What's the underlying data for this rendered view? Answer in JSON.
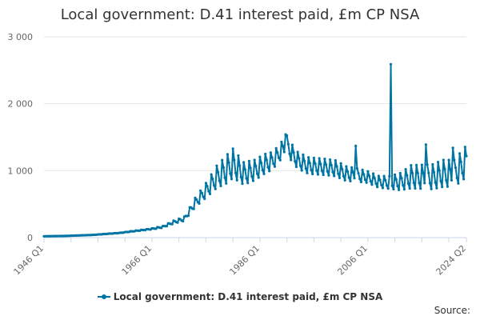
{
  "source_label": "Source:",
  "chart_data": {
    "type": "line",
    "title": "Local government: D.41 interest paid, £m CP NSA",
    "xlabel": "",
    "ylabel": "",
    "x_tick_labels": [
      "1946 Q1",
      "1966 Q1",
      "1986 Q1",
      "2006 Q1",
      "2024 Q2"
    ],
    "y_tick_labels": [
      "0",
      "1 000",
      "2 000",
      "3 000"
    ],
    "y_ticks": [
      0,
      1000,
      2000,
      3000
    ],
    "ylim": [
      0,
      3000
    ],
    "x_range": [
      "1946 Q1",
      "2024 Q2"
    ],
    "grid": "horizontal",
    "legend_position": "bottom",
    "series_color": "#0075A3",
    "series": [
      {
        "name": "Local government: D.41 interest paid, £m CP NSA",
        "start": "1946 Q1",
        "frequency": "quarterly",
        "anchors": [
          [
            "1946 Q1",
            20
          ],
          [
            "1950 Q1",
            25
          ],
          [
            "1955 Q1",
            40
          ],
          [
            "1960 Q1",
            70
          ],
          [
            "1963 Q1",
            100
          ],
          [
            "1966 Q1",
            130
          ],
          [
            "1968 Q1",
            160
          ],
          [
            "1970 Q1",
            230
          ],
          [
            "1972 Q1",
            280
          ],
          [
            "1974 Q1",
            520
          ],
          [
            "1976 Q1",
            700
          ],
          [
            "1978 Q1",
            900
          ],
          [
            "1980 Q1",
            1020
          ],
          [
            "1981 Q1",
            1100
          ],
          [
            "1983 Q1",
            950
          ],
          [
            "1985 Q1",
            1000
          ],
          [
            "1987 Q1",
            1100
          ],
          [
            "1988 Q1",
            1130
          ],
          [
            "1989 Q1",
            1200
          ],
          [
            "1990 Q1",
            1300
          ],
          [
            "1991 Q1",
            1380
          ],
          [
            "1992 Q1",
            1250
          ],
          [
            "1993 Q1",
            1150
          ],
          [
            "1995 Q1",
            1070
          ],
          [
            "1998 Q1",
            1050
          ],
          [
            "2000 Q1",
            1030
          ],
          [
            "2002 Q1",
            950
          ],
          [
            "2004 Q1",
            930
          ],
          [
            "2006 Q1",
            900
          ],
          [
            "2008 Q1",
            830
          ],
          [
            "2010 Q1",
            820
          ],
          [
            "2012 Q1",
            830
          ],
          [
            "2014 Q1",
            900
          ],
          [
            "2016 Q1",
            900
          ],
          [
            "2018 Q1",
            900
          ],
          [
            "2020 Q1",
            950
          ],
          [
            "2022 Q1",
            950
          ],
          [
            "2024 Q2",
            1130
          ]
        ],
        "seasonal_amplitude": [
          [
            "1946 Q1",
            0.005
          ],
          [
            "1965 Q1",
            0.05
          ],
          [
            "1970 Q1",
            0.1
          ],
          [
            "1975 Q1",
            0.15
          ],
          [
            "1980 Q1",
            0.22
          ],
          [
            "1990 Q1",
            0.1
          ],
          [
            "1995 Q1",
            0.12
          ],
          [
            "2002 Q1",
            0.12
          ],
          [
            "2006 Q1",
            0.1
          ],
          [
            "2010 Q1",
            0.12
          ],
          [
            "2014 Q1",
            0.2
          ],
          [
            "2019 Q1",
            0.22
          ],
          [
            "2024 Q2",
            0.22
          ]
        ],
        "spikes": [
          [
            "2010 Q2",
            2590
          ],
          [
            "1990 Q4",
            1540
          ],
          [
            "2003 Q4",
            1370
          ],
          [
            "2016 Q4",
            1390
          ],
          [
            "2021 Q4",
            1340
          ]
        ]
      }
    ]
  }
}
